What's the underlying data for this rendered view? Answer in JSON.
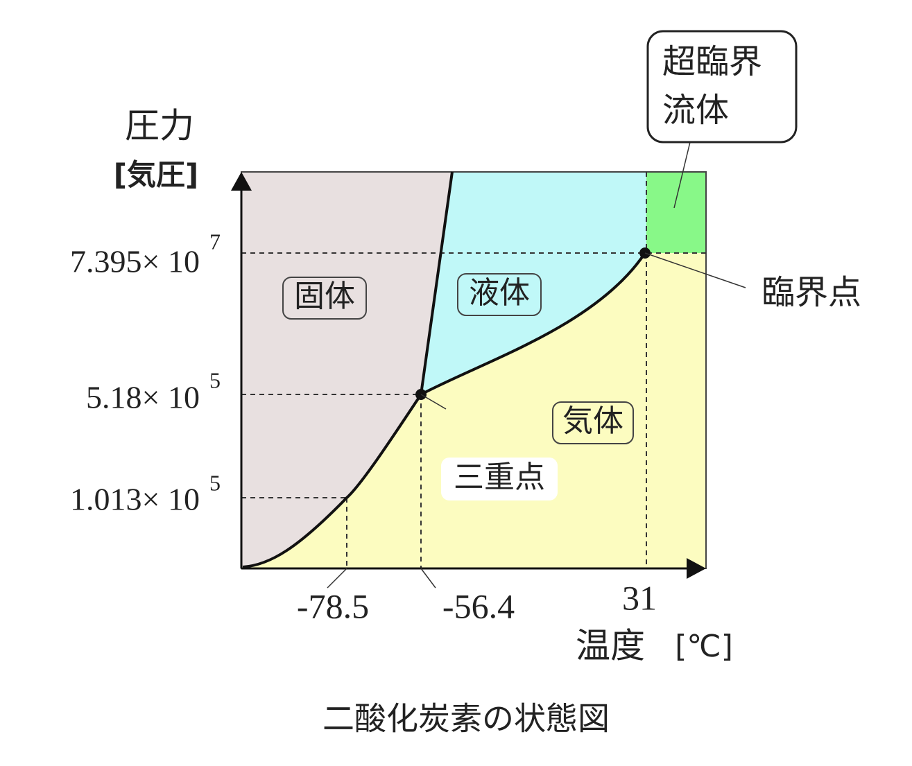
{
  "axes": {
    "y_label": "圧力",
    "y_unit": "[気圧]",
    "x_label": "温度",
    "x_unit": "[℃]"
  },
  "y_ticks": [
    {
      "base": "7.395× 10",
      "exponent": "7"
    },
    {
      "base": "5.18× 10",
      "exponent": "5"
    },
    {
      "base": "1.013× 10",
      "exponent": "5"
    }
  ],
  "x_ticks": [
    "-78.5",
    "-56.4",
    "31"
  ],
  "regions": {
    "solid": "固体",
    "liquid": "液体",
    "gas": "気体",
    "supercritical": [
      "超臨界",
      "流体"
    ]
  },
  "points": {
    "triple": "三重点",
    "critical": "臨界点"
  },
  "caption": "二酸化炭素の状態図"
}
